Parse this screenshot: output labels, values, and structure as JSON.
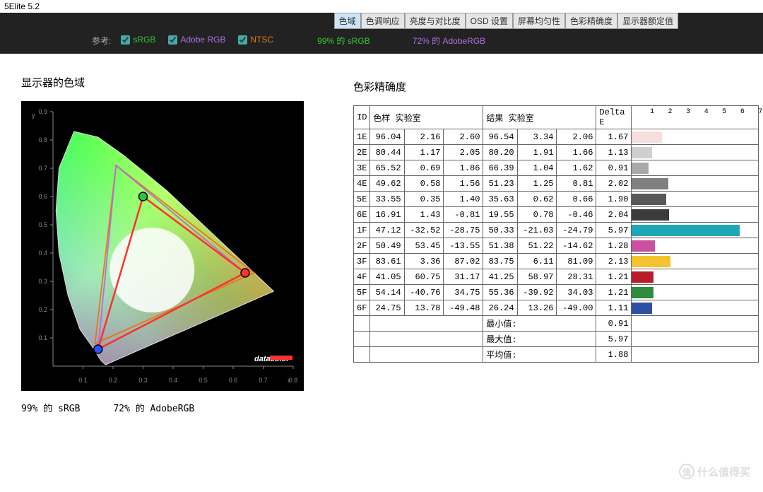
{
  "window": {
    "title": "5Elite 5.2"
  },
  "tabs": [
    "色域",
    "色调响应",
    "亮度与对比度",
    "OSD 设置",
    "屏幕均匀性",
    "色彩精确度",
    "显示器额定值"
  ],
  "active_tab": 0,
  "refbar": {
    "label": "参考:",
    "items": [
      {
        "label": "sRGB",
        "color": "#35c535",
        "checked": true
      },
      {
        "label": "Adobe RGB",
        "color": "#b26fe0",
        "checked": true
      },
      {
        "label": "NTSC",
        "color": "#e67817",
        "checked": true
      }
    ],
    "coverage": [
      {
        "text": "99% 的 sRGB",
        "color": "#35c535"
      },
      {
        "text": "72% 的 AdobeRGB",
        "color": "#b26fe0"
      }
    ]
  },
  "gamut": {
    "title": "显示器的色域",
    "caption1": "99% 的 sRGB",
    "caption2": "72% 的 AdobeRGB",
    "axis_ticks": [
      "0.1",
      "0.2",
      "0.3",
      "0.4",
      "0.5",
      "0.6",
      "0.7",
      "0.8",
      "0.9"
    ],
    "brand": "datacolor",
    "triangles": {
      "measured": {
        "color": "#ff3030",
        "pts": [
          [
            0.64,
            0.33
          ],
          [
            0.3,
            0.6
          ],
          [
            0.15,
            0.06
          ]
        ]
      },
      "srgb": {
        "color": "#35c535",
        "pts": [
          [
            0.64,
            0.33
          ],
          [
            0.3,
            0.6
          ],
          [
            0.15,
            0.06
          ]
        ]
      },
      "adobe": {
        "color": "#b26fe0",
        "pts": [
          [
            0.64,
            0.33
          ],
          [
            0.21,
            0.71
          ],
          [
            0.15,
            0.06
          ]
        ]
      },
      "ntsc": {
        "color": "#e67817",
        "pts": [
          [
            0.67,
            0.33
          ],
          [
            0.21,
            0.71
          ],
          [
            0.14,
            0.08
          ]
        ]
      }
    }
  },
  "accuracy": {
    "title": "色彩精确度",
    "headers": {
      "id": "ID",
      "sample": "色样 实验室",
      "result": "结果 实验室",
      "delta": "Delta E"
    },
    "bar_ticks": [
      1,
      2,
      3,
      4,
      5,
      6,
      7
    ],
    "bar_max": 7,
    "rows": [
      {
        "id": "1E",
        "s": [
          96.04,
          2.16,
          2.6
        ],
        "r": [
          96.54,
          3.34,
          2.06
        ],
        "d": 1.67,
        "c": "#f5dede"
      },
      {
        "id": "2E",
        "s": [
          80.44,
          1.17,
          2.05
        ],
        "r": [
          80.2,
          1.91,
          1.66
        ],
        "d": 1.13,
        "c": "#cfcfcf"
      },
      {
        "id": "3E",
        "s": [
          65.52,
          0.69,
          1.86
        ],
        "r": [
          66.39,
          1.04,
          1.62
        ],
        "d": 0.91,
        "c": "#a9a9a9"
      },
      {
        "id": "4E",
        "s": [
          49.62,
          0.58,
          1.56
        ],
        "r": [
          51.23,
          1.25,
          0.81
        ],
        "d": 2.02,
        "c": "#808080"
      },
      {
        "id": "5E",
        "s": [
          33.55,
          0.35,
          1.4
        ],
        "r": [
          35.63,
          0.62,
          0.66
        ],
        "d": 1.9,
        "c": "#595959"
      },
      {
        "id": "6E",
        "s": [
          16.91,
          1.43,
          -0.81
        ],
        "r": [
          19.55,
          0.78,
          -0.46
        ],
        "d": 2.04,
        "c": "#3b3b3b"
      },
      {
        "id": "1F",
        "s": [
          47.12,
          -32.52,
          -28.75
        ],
        "r": [
          50.33,
          -21.03,
          -24.79
        ],
        "d": 5.97,
        "c": "#1fa7b8"
      },
      {
        "id": "2F",
        "s": [
          50.49,
          53.45,
          -13.55
        ],
        "r": [
          51.38,
          51.22,
          -14.62
        ],
        "d": 1.28,
        "c": "#c94fa0"
      },
      {
        "id": "3F",
        "s": [
          83.61,
          3.36,
          87.02
        ],
        "r": [
          83.75,
          6.11,
          81.09
        ],
        "d": 2.13,
        "c": "#f4c430"
      },
      {
        "id": "4F",
        "s": [
          41.05,
          60.75,
          31.17
        ],
        "r": [
          41.25,
          58.97,
          28.31
        ],
        "d": 1.21,
        "c": "#b71c2b"
      },
      {
        "id": "5F",
        "s": [
          54.14,
          -40.76,
          34.75
        ],
        "r": [
          55.36,
          -39.92,
          34.03
        ],
        "d": 1.21,
        "c": "#2e8b3d"
      },
      {
        "id": "6F",
        "s": [
          24.75,
          13.78,
          -49.48
        ],
        "r": [
          26.24,
          13.26,
          -49.0
        ],
        "d": 1.11,
        "c": "#2e4fa3"
      }
    ],
    "summary": [
      {
        "label": "最小值:",
        "val": 0.91
      },
      {
        "label": "最大值:",
        "val": 5.97
      },
      {
        "label": "平均值:",
        "val": 1.88
      }
    ]
  },
  "watermark": {
    "icon": "值",
    "text": "什么值得买"
  }
}
